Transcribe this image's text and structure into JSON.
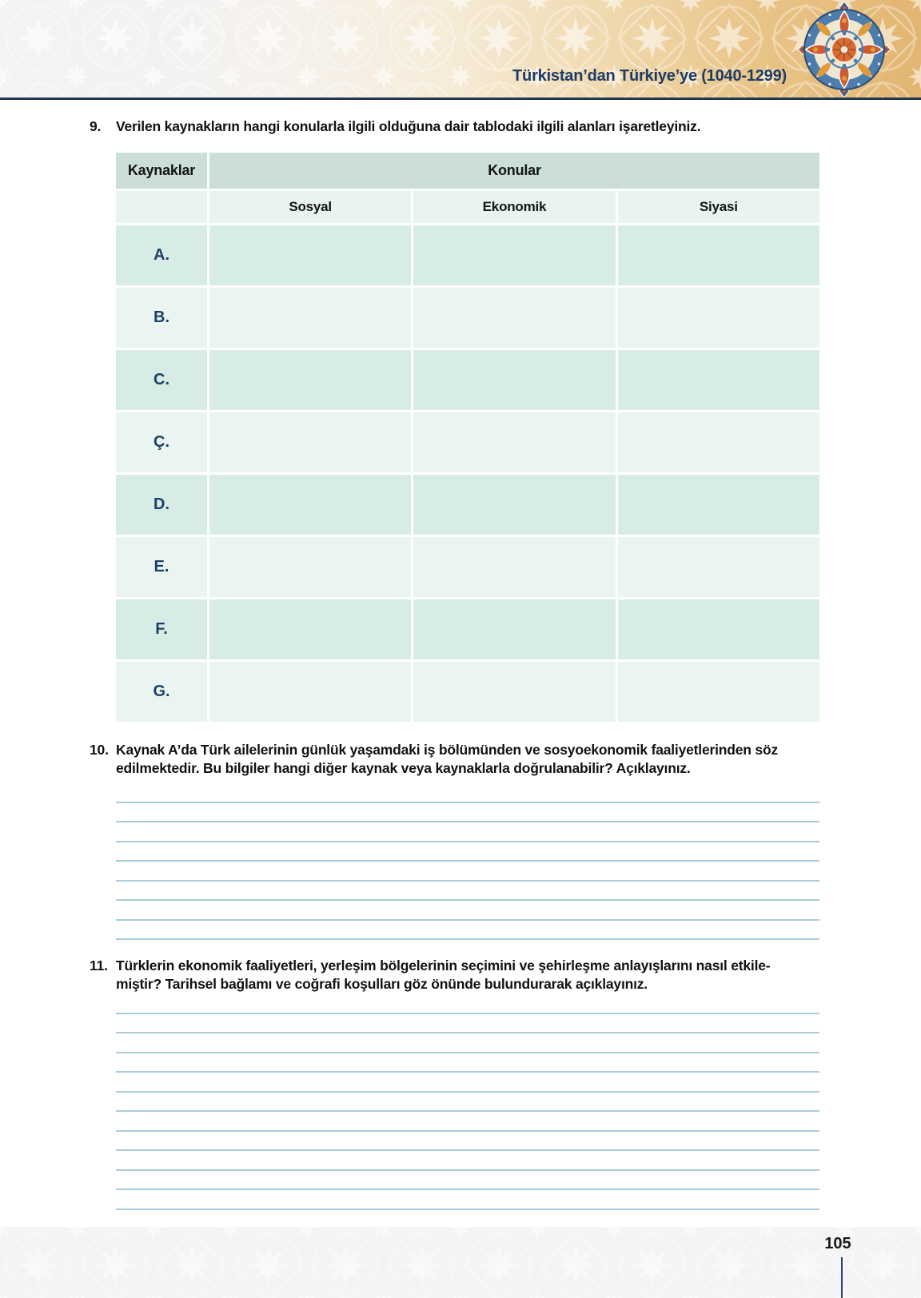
{
  "header": {
    "title": "Türkistan’dan Türkiye’ye (1040-1299)"
  },
  "questions": {
    "q9": {
      "number": "9.",
      "lines": [
        "Verilen kaynakların hangi konularla ilgili olduğuna dair tablodaki ilgili alanları işaretleyiniz."
      ]
    },
    "q10": {
      "number": "10.",
      "lines": [
        "Kaynak A’da Türk ailelerinin günlük yaşamdaki iş bölümünden ve sosyoekonomik faaliyetlerinden söz",
        "edilmektedir. Bu bilgiler hangi diğer kaynak veya kaynaklarla doğrulanabilir? Açıklayınız."
      ],
      "answer_line_count": 8
    },
    "q11": {
      "number": "11.",
      "lines": [
        "Türklerin ekonomik faaliyetleri, yerleşim bölgelerinin seçimini ve şehirleşme anlayışlarını nasıl etkile-",
        "miştir? Tarihsel bağlamı ve coğrafi koşulları göz önünde bulundurarak açıklayınız."
      ],
      "answer_line_count": 11
    }
  },
  "table": {
    "col1_header": "Kaynaklar",
    "group_header": "Konular",
    "columns": [
      "Sosyal",
      "Ekonomik",
      "Siyasi"
    ],
    "rows": [
      "A.",
      "B.",
      "C.",
      "Ç.",
      "D.",
      "E.",
      "F.",
      "G."
    ]
  },
  "footer": {
    "page_number": "105"
  },
  "colors": {
    "navy": "#1d3c66",
    "header_tan": "#e2b672",
    "table_header_green": "#cbdfd6",
    "table_subheader": "#e9f4f0",
    "row_dark_mint": "#d7ece4",
    "row_light_mint": "#eaf5f1",
    "answer_line_blue": "#a9ccdc",
    "ornament_orange": "#cf5a30",
    "ornament_blue": "#4d7dac"
  }
}
